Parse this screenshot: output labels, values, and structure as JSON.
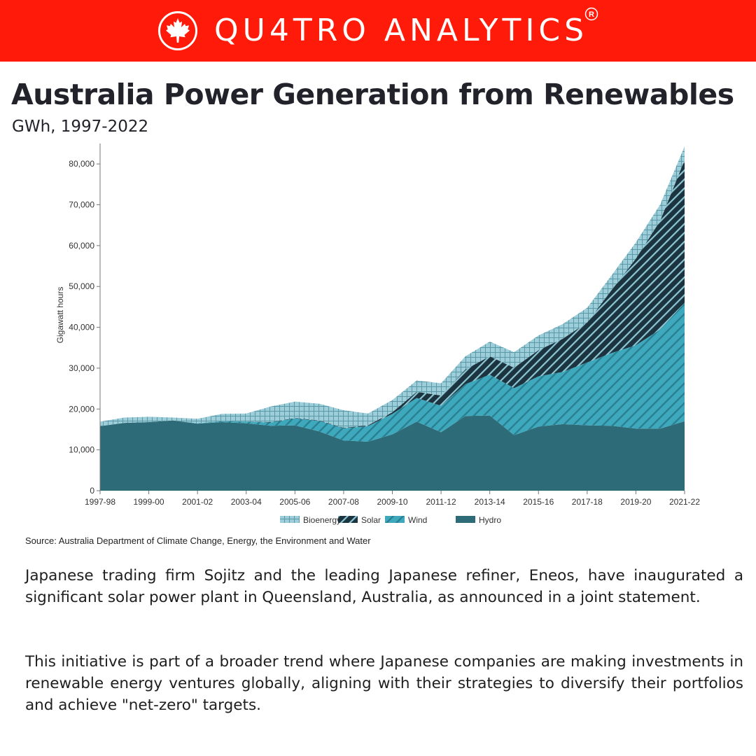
{
  "brand": {
    "name": "QU4TRO ANALYTICS",
    "registered_symbol": "R",
    "logo_icon": "maple-leaf-icon",
    "banner_color": "#ff1a0a"
  },
  "title": "Australia Power Generation from Renewables",
  "subtitle": "GWh, 1997-2022",
  "chart_data": {
    "type": "area",
    "stacked": true,
    "ylabel": "Gigawatt hours",
    "xlabel": "",
    "ylim": [
      0,
      85000
    ],
    "yticks": [
      0,
      10000,
      20000,
      30000,
      40000,
      50000,
      60000,
      70000,
      80000
    ],
    "ytick_labels": [
      "0",
      "10,000",
      "20,000",
      "30,000",
      "40,000",
      "50,000",
      "60,000",
      "70,000",
      "80,000"
    ],
    "x": [
      "1997-98",
      "1998-99",
      "1999-00",
      "2000-01",
      "2001-02",
      "2002-03",
      "2003-04",
      "2004-05",
      "2005-06",
      "2006-07",
      "2007-08",
      "2008-09",
      "2009-10",
      "2010-11",
      "2011-12",
      "2012-13",
      "2013-14",
      "2014-15",
      "2015-16",
      "2016-17",
      "2017-18",
      "2018-19",
      "2019-20",
      "2020-21",
      "2021-22"
    ],
    "xtick_labels": [
      "1997-98",
      "1999-00",
      "2001-02",
      "2003-04",
      "2005-06",
      "2007-08",
      "2009-10",
      "2011-12",
      "2013-14",
      "2015-16",
      "2017-18",
      "2019-20",
      "2021-22"
    ],
    "xtick_indices": [
      0,
      2,
      4,
      6,
      8,
      10,
      12,
      14,
      16,
      18,
      20,
      22,
      24
    ],
    "grid": false,
    "legend_position": "bottom",
    "legend_order": [
      "Bioenergy",
      "Solar",
      "Wind",
      "Hydro"
    ],
    "series": [
      {
        "name": "Hydro",
        "color": "#2e6b78",
        "pattern": "solid",
        "values": [
          15800,
          16600,
          16800,
          17200,
          16400,
          16800,
          16500,
          15900,
          16000,
          14500,
          12300,
          12000,
          13800,
          16900,
          14300,
          18300,
          18400,
          13600,
          15700,
          16300,
          16000,
          15900,
          15200,
          15200,
          17000
        ]
      },
      {
        "name": "Wind",
        "color": "#3ea9bd",
        "pattern": "diagonal",
        "values": [
          0,
          0,
          0,
          0,
          100,
          200,
          400,
          800,
          1700,
          2600,
          3000,
          3800,
          5000,
          5800,
          6500,
          7800,
          10000,
          11500,
          12300,
          12800,
          15400,
          17800,
          20400,
          24300,
          29000
        ]
      },
      {
        "name": "Solar",
        "color": "#1c3340",
        "pattern": "hatched",
        "values": [
          0,
          0,
          0,
          0,
          0,
          0,
          0,
          100,
          100,
          100,
          100,
          200,
          400,
          1500,
          2500,
          3600,
          4500,
          5000,
          6400,
          8100,
          9800,
          15400,
          21200,
          26600,
          35000
        ]
      },
      {
        "name": "Bioenergy",
        "color": "#8fc6d2",
        "pattern": "grid",
        "values": [
          1100,
          1300,
          1300,
          700,
          1100,
          1800,
          2000,
          3800,
          4000,
          4100,
          4300,
          2900,
          3000,
          2800,
          3000,
          3200,
          3600,
          3800,
          3600,
          3600,
          3600,
          3600,
          4000,
          4000,
          3300
        ]
      }
    ]
  },
  "source_note": "Source: Australia Department of Climate Change, Energy, the Environment and Water",
  "paragraphs": [
    "Japanese trading firm Sojitz and the leading Japanese refiner, Eneos, have inaugurated a significant solar power plant in Queensland, Australia, as announced in a joint statement.",
    "This initiative is part of a broader trend where Japanese companies are making investments in renewable energy ventures globally, aligning with their strategies to diversify their portfolios and achieve \"net-zero\" targets."
  ]
}
